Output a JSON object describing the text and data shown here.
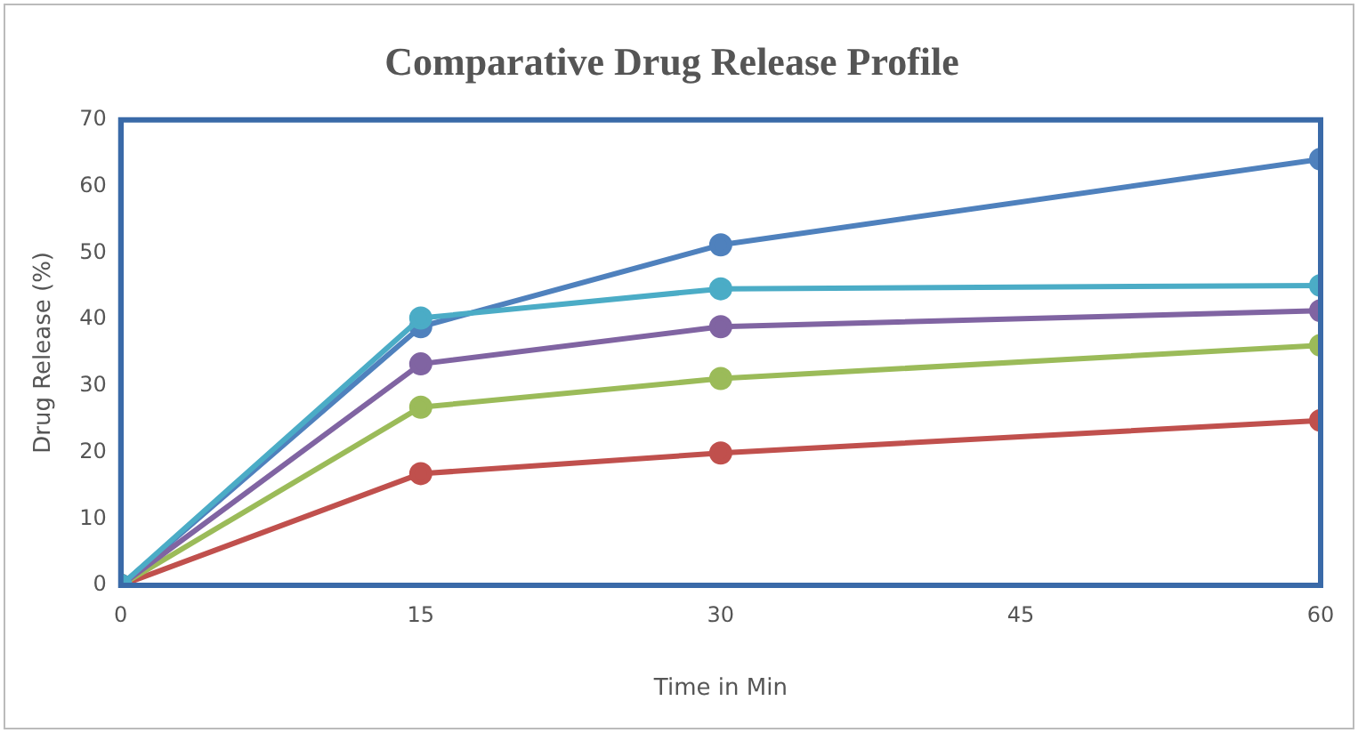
{
  "chart_data": {
    "type": "line",
    "title": "Comparative Drug Release Profile",
    "xlabel": "Time in Min",
    "ylabel": "Drug Release (%)",
    "x": [
      0,
      15,
      30,
      60
    ],
    "xlim": [
      0,
      60
    ],
    "xticks": [
      0,
      15,
      30,
      45,
      60
    ],
    "ylim": [
      0,
      70
    ],
    "yticks": [
      0,
      10,
      20,
      30,
      40,
      50,
      60,
      70
    ],
    "grid": false,
    "legend": false,
    "marker": "circle",
    "line_style": "solid",
    "series": [
      {
        "color": "#4f81bd",
        "values": [
          0,
          38.9,
          51.2,
          64.1
        ]
      },
      {
        "color": "#c0504d",
        "values": [
          0,
          16.8,
          19.9,
          24.8
        ]
      },
      {
        "color": "#9bbb59",
        "values": [
          0,
          26.8,
          31.1,
          36.1
        ]
      },
      {
        "color": "#8064a2",
        "values": [
          0,
          33.3,
          38.9,
          41.3
        ]
      },
      {
        "color": "#4bacc6",
        "values": [
          0,
          40.2,
          44.6,
          45.1
        ]
      }
    ]
  }
}
